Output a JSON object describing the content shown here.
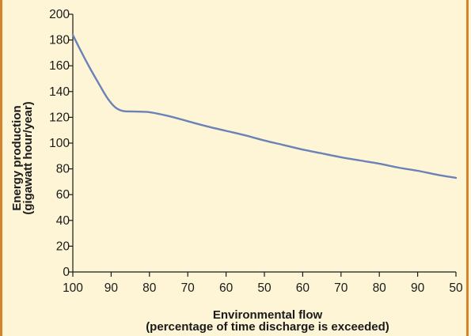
{
  "chart_data": {
    "type": "line",
    "title": "",
    "xlabel": [
      "Environmental flow",
      "(percentage of time discharge is exceeded)"
    ],
    "ylabel": [
      "Energy production",
      "(gigawatt hour/year)"
    ],
    "x_tick_labels": [
      "100",
      "90",
      "80",
      "70",
      "60",
      "50",
      "60",
      "70",
      "80",
      "90",
      "50"
    ],
    "y_tick_labels": [
      "0",
      "20",
      "40",
      "60",
      "80",
      "100",
      "120",
      "140",
      "160",
      "180",
      "200"
    ],
    "ylim": [
      0,
      200
    ],
    "grid": false,
    "legend": "none",
    "line_color": "#6b82b8",
    "series": [
      {
        "x_index": [
          0,
          0.2,
          0.45,
          0.7,
          0.9,
          1.1,
          1.3,
          1.6,
          2.0,
          2.5,
          3.0,
          3.5,
          4.0,
          4.5,
          5.0,
          5.5,
          6.0,
          6.5,
          7.0,
          7.5,
          8.0,
          8.5,
          9.0,
          9.5,
          10.0
        ],
        "y": [
          184,
          172,
          158,
          145,
          135,
          128,
          125,
          124.5,
          124,
          121,
          117,
          113,
          109.5,
          106,
          102,
          98.5,
          95,
          92,
          89,
          86.5,
          84,
          81,
          78.5,
          75.5,
          73
        ]
      }
    ]
  }
}
